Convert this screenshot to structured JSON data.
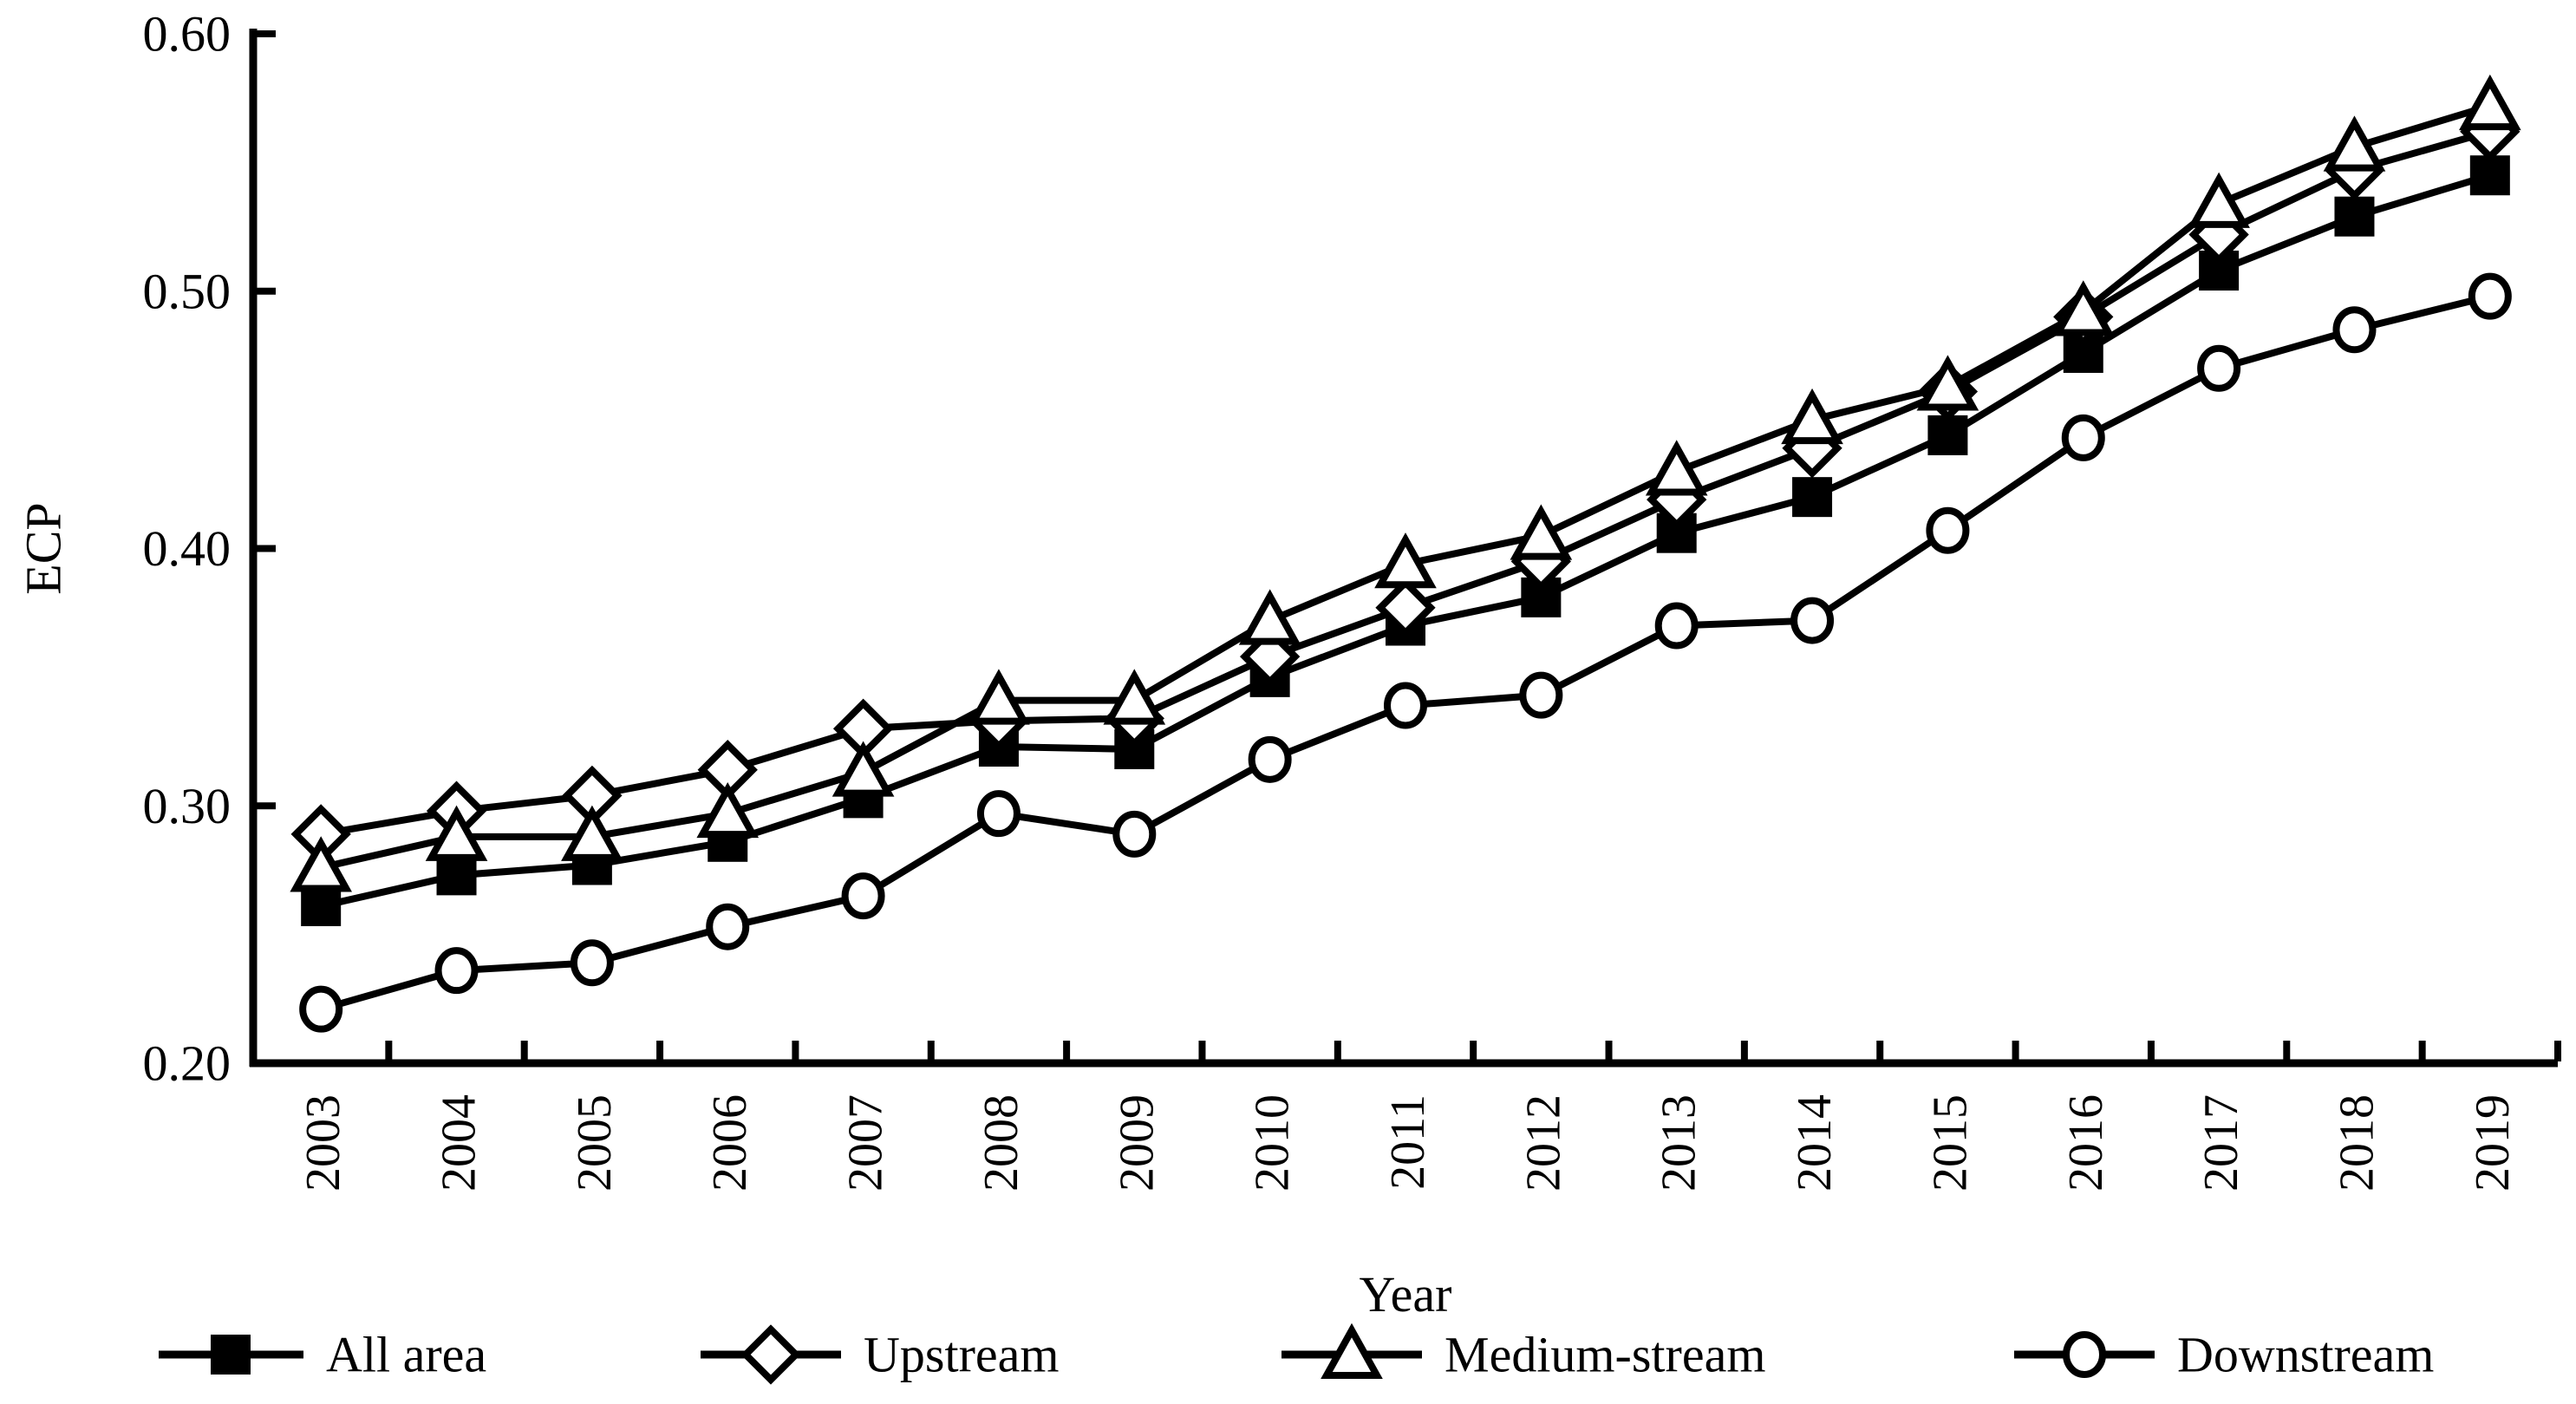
{
  "page": {
    "background_color": "#ffffff",
    "ink_color": "#000000"
  },
  "chart_data": {
    "type": "line",
    "title": "",
    "xlabel": "Year",
    "ylabel": "ECP",
    "x": [
      2003,
      2004,
      2005,
      2006,
      2007,
      2008,
      2009,
      2010,
      2011,
      2012,
      2013,
      2014,
      2015,
      2016,
      2017,
      2018,
      2019
    ],
    "ylim": [
      0.2,
      0.6
    ],
    "ytick_values": [
      0.2,
      0.3,
      0.4,
      0.5,
      0.6
    ],
    "ytick_labels": [
      "0.20",
      "0.30",
      "0.40",
      "0.50",
      "0.60"
    ],
    "grid": false,
    "legend_position": "bottom",
    "line_color": "#000000",
    "marker_fill_open": "#ffffff",
    "series": [
      {
        "name": "All area",
        "marker": "filled-square",
        "values": [
          0.261,
          0.273,
          0.277,
          0.286,
          0.303,
          0.323,
          0.322,
          0.35,
          0.37,
          0.381,
          0.406,
          0.42,
          0.444,
          0.476,
          0.508,
          0.529,
          0.545
        ]
      },
      {
        "name": "Upstream",
        "marker": "open-diamond",
        "values": [
          0.289,
          0.298,
          0.304,
          0.314,
          0.33,
          0.333,
          0.334,
          0.358,
          0.377,
          0.395,
          0.419,
          0.439,
          0.461,
          0.49,
          0.522,
          0.547,
          0.562
        ]
      },
      {
        "name": "Medium-stream",
        "marker": "open-triangle",
        "values": [
          0.276,
          0.288,
          0.288,
          0.297,
          0.313,
          0.341,
          0.341,
          0.372,
          0.394,
          0.405,
          0.43,
          0.45,
          0.463,
          0.492,
          0.534,
          0.556,
          0.572
        ]
      },
      {
        "name": "Downstream",
        "marker": "open-circle",
        "values": [
          0.221,
          0.236,
          0.239,
          0.253,
          0.265,
          0.297,
          0.289,
          0.318,
          0.339,
          0.343,
          0.37,
          0.372,
          0.407,
          0.443,
          0.47,
          0.485,
          0.498
        ]
      }
    ]
  }
}
